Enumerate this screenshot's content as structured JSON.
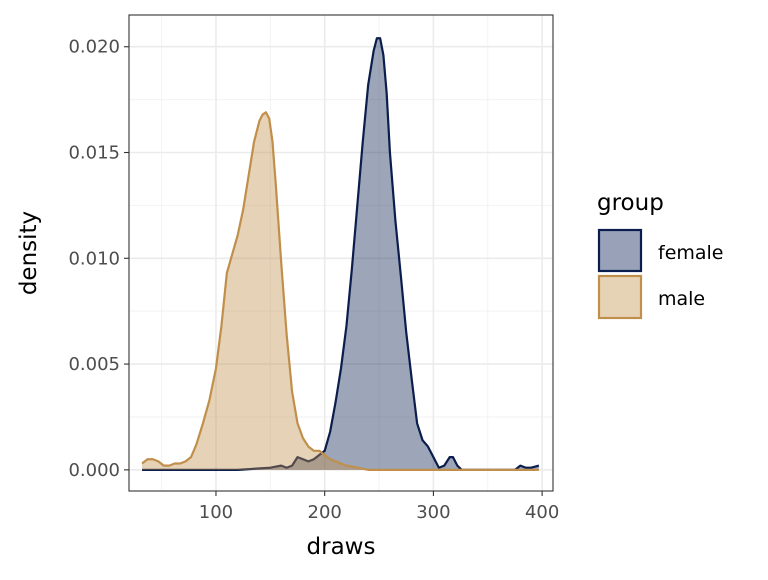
{
  "chart_data": {
    "type": "area",
    "subtype": "density",
    "xlabel": "draws",
    "ylabel": "density",
    "xlim": [
      20,
      410
    ],
    "ylim": [
      -0.001,
      0.0215
    ],
    "x_ticks": [
      100,
      200,
      300,
      400
    ],
    "x_tick_labels": [
      "100",
      "200",
      "300",
      "400"
    ],
    "y_ticks": [
      0.0,
      0.005,
      0.01,
      0.015,
      0.02
    ],
    "y_tick_labels": [
      "0.000",
      "0.005",
      "0.010",
      "0.015",
      "0.020"
    ],
    "grid": true,
    "legend": {
      "title": "group",
      "position": "right",
      "entries": [
        {
          "label": "female",
          "fill": "#99a1b8",
          "stroke": "#0b1d4d"
        },
        {
          "label": "male",
          "fill": "#e6d3b5",
          "stroke": "#c08f4b"
        }
      ]
    },
    "series": [
      {
        "name": "female",
        "fill": "#0b1d4d",
        "stroke": "#0b1d4d",
        "x": [
          32,
          120,
          150,
          160,
          165,
          170,
          175,
          180,
          185,
          190,
          195,
          200,
          205,
          210,
          215,
          220,
          225,
          230,
          235,
          240,
          245,
          248,
          251,
          254,
          257,
          260,
          265,
          270,
          275,
          280,
          285,
          290,
          295,
          300,
          305,
          310,
          315,
          318,
          322,
          326,
          330,
          340,
          360,
          375,
          380,
          385,
          390,
          397
        ],
        "y": [
          0.0,
          0.0,
          0.0001,
          0.0002,
          0.0001,
          0.0002,
          0.0006,
          0.0005,
          0.0004,
          0.0005,
          0.0007,
          0.0009,
          0.0018,
          0.0032,
          0.0048,
          0.0068,
          0.0095,
          0.0125,
          0.0155,
          0.0182,
          0.0198,
          0.0204,
          0.0204,
          0.0196,
          0.0178,
          0.015,
          0.0118,
          0.0092,
          0.0065,
          0.0043,
          0.0022,
          0.0014,
          0.0011,
          0.0006,
          0.0001,
          0.0002,
          0.0006,
          0.0006,
          0.0002,
          0.0,
          0.0,
          0.0,
          0.0,
          0.0,
          0.0002,
          0.0001,
          0.0001,
          0.0002
        ]
      },
      {
        "name": "male",
        "fill": "#c08f4b",
        "stroke": "#c08f4b",
        "x": [
          32,
          37,
          42,
          47,
          52,
          57,
          62,
          67,
          72,
          77,
          82,
          88,
          94,
          100,
          105,
          110,
          115,
          120,
          125,
          130,
          135,
          140,
          143,
          146,
          149,
          152,
          155,
          160,
          165,
          170,
          175,
          180,
          185,
          190,
          195,
          200,
          205,
          210,
          220,
          230,
          240,
          260,
          300,
          350,
          397
        ],
        "y": [
          0.0003,
          0.0005,
          0.0005,
          0.0004,
          0.0002,
          0.0002,
          0.0003,
          0.0003,
          0.0004,
          0.0006,
          0.0012,
          0.0022,
          0.0033,
          0.0048,
          0.0068,
          0.0093,
          0.0102,
          0.0111,
          0.0123,
          0.0139,
          0.0155,
          0.0165,
          0.0168,
          0.0169,
          0.0166,
          0.0155,
          0.0135,
          0.0098,
          0.0064,
          0.0037,
          0.0022,
          0.0015,
          0.0011,
          0.0009,
          0.0009,
          0.0007,
          0.0005,
          0.0004,
          0.0002,
          0.0001,
          0.0,
          0.0,
          0.0,
          0.0,
          0.0
        ]
      }
    ]
  }
}
